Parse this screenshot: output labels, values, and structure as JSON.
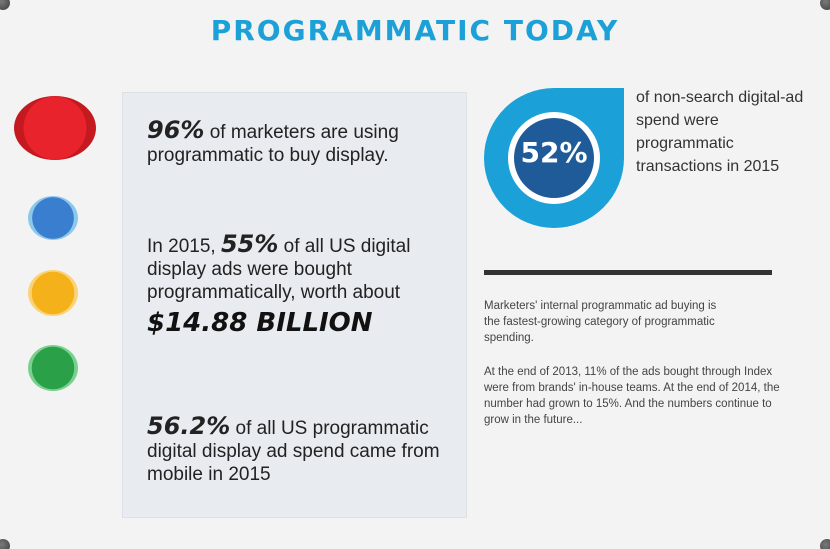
{
  "title": "PROGRAMMATIC TODAY",
  "colors": {
    "title": "#1ba1d8",
    "gauge_blue": "#1ba1d8",
    "gauge_inner": "#1f5a99",
    "dot_red": "#e8232b",
    "dot_blue": "#3a7fcf",
    "dot_yellow": "#f5b11a",
    "dot_green": "#2aa049"
  },
  "stats": {
    "stat1": {
      "big": "96%",
      "text": " of marketers are using programmatic to buy display."
    },
    "stat2": {
      "prefix": "In 2015, ",
      "big": "55%",
      "text": " of all US digital display ads were bought programmatically, worth about",
      "money": "$14.88 BILLION"
    },
    "stat3": {
      "big": "56.2%",
      "text": " of all US programmatic digital display ad spend came from mobile in 2015"
    }
  },
  "gauge": {
    "label": "52%",
    "value": 52,
    "description": "of non-search digital-ad spend were programmatic transactions in 2015"
  },
  "notes": {
    "note1": "Marketers' internal programmatic ad buying is the fastest-growing category of programmatic spending.",
    "note2": "At the end of 2013, 11% of the ads bought through Index were from brands' in-house teams. At the end of 2014, the number had grown to 15%. And the numbers continue to grow in the future..."
  }
}
